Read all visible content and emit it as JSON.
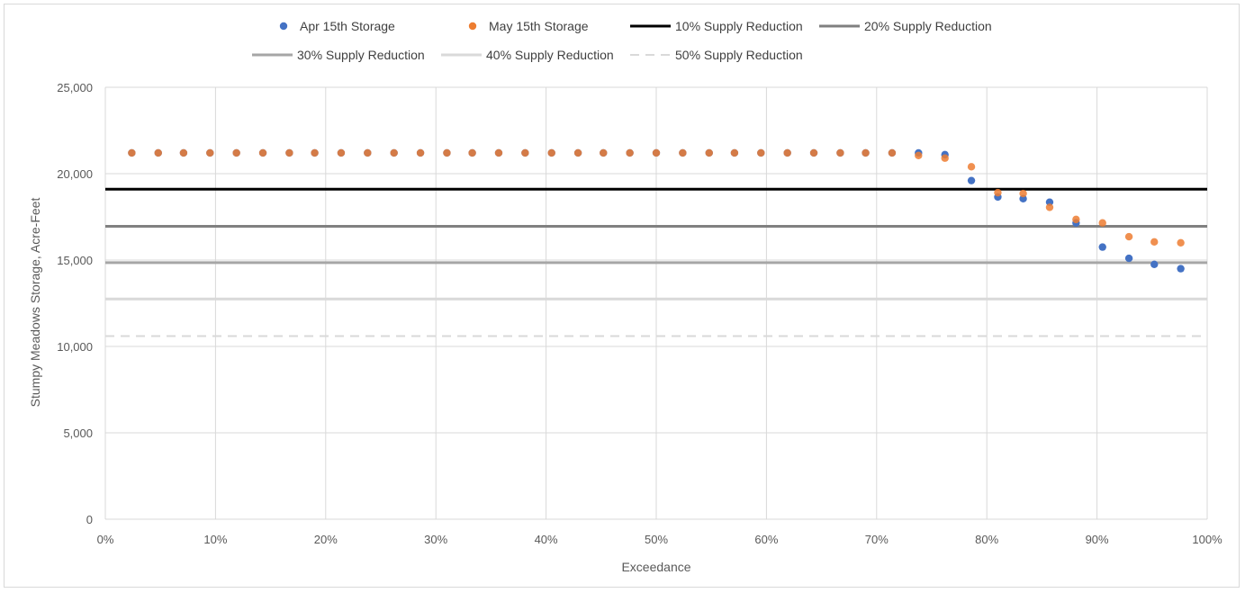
{
  "chart_data": {
    "type": "scatter",
    "title": "",
    "xlabel": "Exceedance",
    "ylabel": "Stumpy Meadows Storage, Acre-Feet",
    "xlim": [
      0,
      100
    ],
    "ylim": [
      0,
      25000
    ],
    "x_ticks": [
      "0%",
      "10%",
      "20%",
      "30%",
      "40%",
      "50%",
      "60%",
      "70%",
      "80%",
      "90%",
      "100%"
    ],
    "y_ticks": [
      "0",
      "5,000",
      "10,000",
      "15,000",
      "20,000",
      "25,000"
    ],
    "grid": true,
    "legend_position": "top",
    "series": [
      {
        "name": "Apr 15th Storage",
        "kind": "scatter",
        "color": "#4472c4",
        "x": [
          2.4,
          4.8,
          7.1,
          9.5,
          11.9,
          14.3,
          16.7,
          19.0,
          21.4,
          23.8,
          26.2,
          28.6,
          31.0,
          33.3,
          35.7,
          38.1,
          40.5,
          42.9,
          45.2,
          47.6,
          50.0,
          52.4,
          54.8,
          57.1,
          59.5,
          61.9,
          64.3,
          66.7,
          69.0,
          71.4,
          73.8,
          76.2,
          78.6,
          81.0,
          83.3,
          85.7,
          88.1,
          90.5,
          92.9,
          95.2,
          97.6
        ],
        "y": [
          21200,
          21200,
          21200,
          21200,
          21200,
          21200,
          21200,
          21200,
          21200,
          21200,
          21200,
          21200,
          21200,
          21200,
          21200,
          21200,
          21200,
          21200,
          21200,
          21200,
          21200,
          21200,
          21200,
          21200,
          21200,
          21200,
          21200,
          21200,
          21200,
          21200,
          21200,
          21100,
          19600,
          18650,
          18550,
          18350,
          17150,
          15750,
          15100,
          14750,
          14500
        ]
      },
      {
        "name": "May 15th Storage",
        "kind": "scatter",
        "color": "#ed7d31",
        "x": [
          2.4,
          4.8,
          7.1,
          9.5,
          11.9,
          14.3,
          16.7,
          19.0,
          21.4,
          23.8,
          26.2,
          28.6,
          31.0,
          33.3,
          35.7,
          38.1,
          40.5,
          42.9,
          45.2,
          47.6,
          50.0,
          52.4,
          54.8,
          57.1,
          59.5,
          61.9,
          64.3,
          66.7,
          69.0,
          71.4,
          73.8,
          76.2,
          78.6,
          81.0,
          83.3,
          85.7,
          88.1,
          90.5,
          92.9,
          95.2,
          97.6
        ],
        "y": [
          21200,
          21200,
          21200,
          21200,
          21200,
          21200,
          21200,
          21200,
          21200,
          21200,
          21200,
          21200,
          21200,
          21200,
          21200,
          21200,
          21200,
          21200,
          21200,
          21200,
          21200,
          21200,
          21200,
          21200,
          21200,
          21200,
          21200,
          21200,
          21200,
          21200,
          21050,
          20900,
          20400,
          18900,
          18850,
          18050,
          17350,
          17150,
          16350,
          16050,
          16000
        ]
      },
      {
        "name": "10% Supply Reduction",
        "kind": "hline",
        "y": 19100,
        "color": "#000000",
        "dash": false
      },
      {
        "name": "20% Supply Reduction",
        "kind": "hline",
        "y": 16950,
        "color": "#808080",
        "dash": false
      },
      {
        "name": "30% Supply Reduction",
        "kind": "hline",
        "y": 14850,
        "color": "#a6a6a6",
        "dash": false
      },
      {
        "name": "40% Supply Reduction",
        "kind": "hline",
        "y": 12750,
        "color": "#d9d9d9",
        "dash": false
      },
      {
        "name": "50% Supply Reduction",
        "kind": "hline",
        "y": 10600,
        "color": "#d9d9d9",
        "dash": true
      }
    ]
  }
}
